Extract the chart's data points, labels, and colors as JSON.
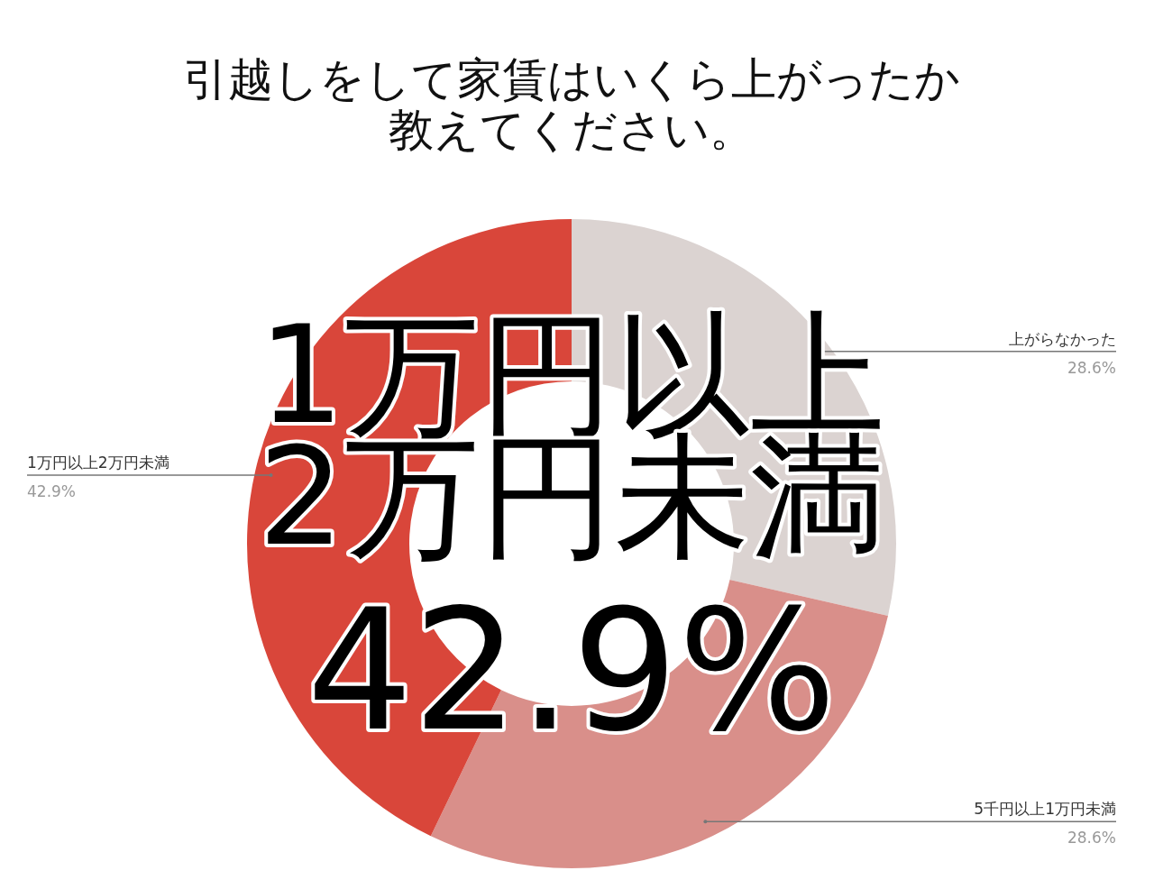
{
  "chart_data": {
    "type": "donut",
    "title": "引越しをして家賃はいくら上がったか教えてください。",
    "categories": [
      "上がらなかった",
      "5千円以上1万円未満",
      "1万円以上2万円未満"
    ],
    "values": [
      28.6,
      28.6,
      42.9
    ],
    "colors": [
      "#dbd3d1",
      "#d98f8a",
      "#d9463a"
    ],
    "value_labels": [
      "28.6%",
      "28.6%",
      "42.9%"
    ],
    "annotations": [
      "1万円以上",
      "2万円未満",
      "42.9%"
    ],
    "legend": false
  }
}
